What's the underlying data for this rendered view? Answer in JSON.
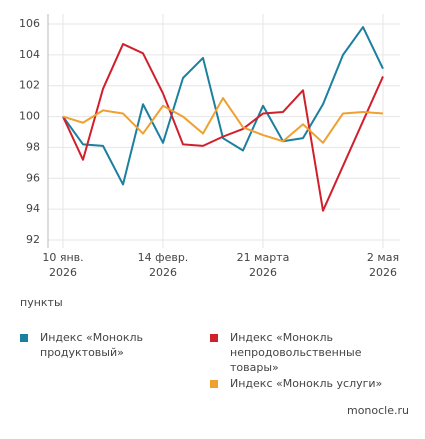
{
  "chart_data": {
    "type": "line",
    "y_label": "пункты",
    "source": "monocle.ru",
    "categories": [
      "10 янв. 2026",
      null,
      null,
      null,
      null,
      "14 февр. 2026",
      null,
      null,
      null,
      null,
      "21 марта 2026",
      null,
      null,
      null,
      null,
      null,
      "2 мая 2026"
    ],
    "series": [
      {
        "name": "Индекс «Монокль продуктовый»",
        "color": "#1b7fa0",
        "values": [
          100,
          98.2,
          98.1,
          95.6,
          100.8,
          98.3,
          102.5,
          103.8,
          98.6,
          97.8,
          100.7,
          98.4,
          98.6,
          100.8,
          104,
          105.8,
          103.1
        ]
      },
      {
        "name": "Индекс «Монокль непродовольственные товары»",
        "color": "#d0202c",
        "values": [
          100,
          97.2,
          101.8,
          104.7,
          104.1,
          101.5,
          98.2,
          98.1,
          98.7,
          99.2,
          100.2,
          100.3,
          101.7,
          93.9,
          96.8,
          99.7,
          102.6
        ]
      },
      {
        "name": "Индекс «Монокль услуги»",
        "color": "#f0a030",
        "values": [
          100,
          99.6,
          100.4,
          100.2,
          98.9,
          100.7,
          100,
          98.9,
          101.2,
          99.3,
          98.8,
          98.4,
          99.5,
          98.3,
          100.2,
          100.3,
          100.2
        ]
      }
    ],
    "ylim": [
      92,
      106
    ],
    "yticks": [
      92,
      94,
      96,
      98,
      100,
      102,
      104,
      106
    ],
    "grid": true
  }
}
